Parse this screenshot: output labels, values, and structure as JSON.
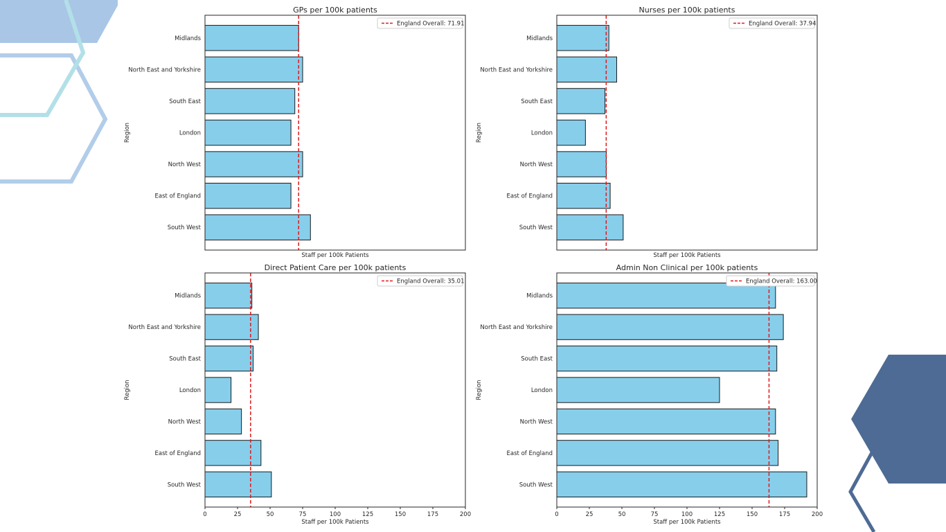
{
  "decor_colors": {
    "light_blue": "#a9c6e6",
    "pale_teal": "#b3e0e8",
    "mid_blue": "#b2cdea",
    "dark_blue": "#4d6b94"
  },
  "chart_data": [
    {
      "type": "bar",
      "orientation": "horizontal",
      "title": "GPs per 100k patients",
      "xlabel": "Staff per 100k Patients",
      "ylabel": "Region",
      "categories": [
        "Midlands",
        "North East and Yorkshire",
        "South East",
        "London",
        "North West",
        "East of England",
        "South West"
      ],
      "values": [
        72,
        75,
        69,
        66,
        75,
        66,
        81
      ],
      "xlim": [
        0,
        200
      ],
      "show_x_ticks": false,
      "x_ticks": [],
      "reference_line": {
        "value": 71.91,
        "label": "England Overall: 71.91"
      },
      "bar_color": "#87ceeb",
      "ref_color": "#e0191b",
      "grid": false,
      "legend_position": "top-right"
    },
    {
      "type": "bar",
      "orientation": "horizontal",
      "title": "Nurses per 100k patients",
      "xlabel": "Staff per 100k Patients",
      "ylabel": "Region",
      "categories": [
        "Midlands",
        "North East and Yorkshire",
        "South East",
        "London",
        "North West",
        "East of England",
        "South West"
      ],
      "values": [
        40,
        46,
        37,
        22,
        38,
        41,
        51
      ],
      "xlim": [
        0,
        200
      ],
      "show_x_ticks": false,
      "x_ticks": [],
      "reference_line": {
        "value": 37.94,
        "label": "England Overall: 37.94"
      },
      "bar_color": "#87ceeb",
      "ref_color": "#e0191b",
      "grid": false,
      "legend_position": "top-right"
    },
    {
      "type": "bar",
      "orientation": "horizontal",
      "title": "Direct Patient Care per 100k patients",
      "xlabel": "Staff per 100k Patients",
      "ylabel": "Region",
      "categories": [
        "Midlands",
        "North East and Yorkshire",
        "South East",
        "London",
        "North West",
        "East of England",
        "South West"
      ],
      "values": [
        36,
        41,
        37,
        20,
        28,
        43,
        51
      ],
      "xlim": [
        0,
        200
      ],
      "show_x_ticks": true,
      "x_ticks": [
        "0",
        "25",
        "50",
        "75",
        "100",
        "125",
        "150",
        "175",
        "200"
      ],
      "reference_line": {
        "value": 35.01,
        "label": "England Overall: 35.01"
      },
      "bar_color": "#87ceeb",
      "ref_color": "#e0191b",
      "grid": false,
      "legend_position": "top-right"
    },
    {
      "type": "bar",
      "orientation": "horizontal",
      "title": "Admin Non Clinical per 100k patients",
      "xlabel": "Staff per 100k Patients",
      "ylabel": "Region",
      "categories": [
        "Midlands",
        "North East and Yorkshire",
        "South East",
        "London",
        "North West",
        "East of England",
        "South West"
      ],
      "values": [
        168,
        174,
        169,
        125,
        168,
        170,
        192
      ],
      "xlim": [
        0,
        200
      ],
      "show_x_ticks": true,
      "x_ticks": [
        "0",
        "25",
        "50",
        "75",
        "100",
        "125",
        "150",
        "175",
        "200"
      ],
      "reference_line": {
        "value": 163.0,
        "label": "England Overall: 163.00"
      },
      "bar_color": "#87ceeb",
      "ref_color": "#e0191b",
      "grid": false,
      "legend_position": "top-right"
    }
  ]
}
